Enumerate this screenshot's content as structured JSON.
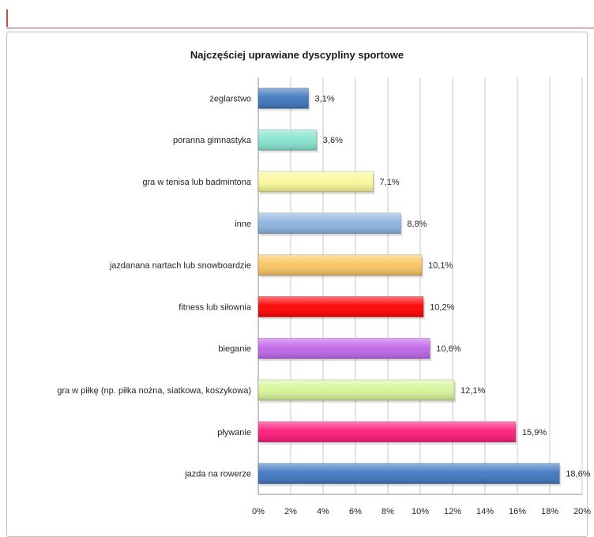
{
  "chart_data": {
    "type": "bar",
    "orientation": "horizontal",
    "title": "Najczęściej uprawiane dyscypliny sportowe",
    "xlabel": "",
    "ylabel": "",
    "xlim": [
      0,
      20
    ],
    "x_ticks": [
      "0%",
      "2%",
      "4%",
      "6%",
      "8%",
      "10%",
      "12%",
      "14%",
      "16%",
      "18%",
      "20%"
    ],
    "grid": "vertical",
    "legend": "none",
    "categories": [
      "żeglarstwo",
      "poranna gimnastyka",
      "gra w tenisa lub badmintona",
      "inne",
      "jazdanana nartach lub snowboardzie",
      "fitness lub siłownia",
      "bieganie",
      "gra w piłkę (np. piłka nożna, siatkowa, koszykowa)",
      "pływanie",
      "jazda na rowerze"
    ],
    "values": [
      3.1,
      3.6,
      7.1,
      8.8,
      10.1,
      10.2,
      10.6,
      12.1,
      15.9,
      18.6
    ],
    "value_labels": [
      "3,1%",
      "3,6%",
      "7,1%",
      "8,8%",
      "10,1%",
      "10,2%",
      "10,6%",
      "12,1%",
      "15,9%",
      "18,6%"
    ],
    "colors": [
      "#3f78c0",
      "#86e3cf",
      "#fbf79a",
      "#8db3e2",
      "#f9c460",
      "#ff0000",
      "#c066e8",
      "#d7f59a",
      "#ff1a7a",
      "#3f78c0"
    ]
  }
}
